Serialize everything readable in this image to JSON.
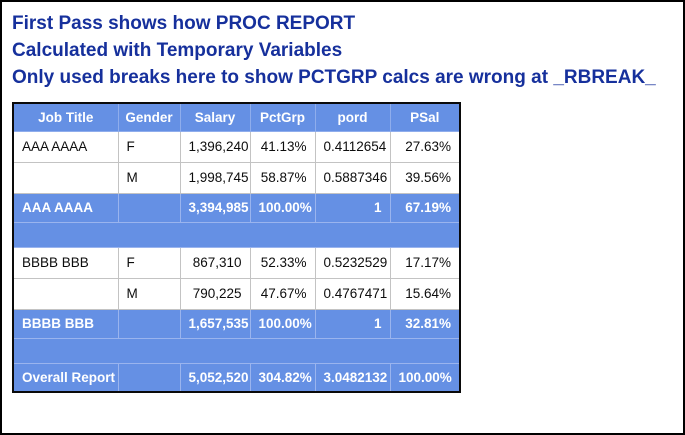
{
  "page": {
    "background": "#FFFFFF",
    "frame_border_color": "#000000"
  },
  "titles": {
    "color": "#16309C",
    "line1": "First Pass shows how PROC REPORT",
    "line2": "Calculated with Temporary Variables",
    "line3": "Only used breaks here to show PCTGRP calcs are wrong at _RBREAK_"
  },
  "table": {
    "colors": {
      "header_bg": "#6590E4",
      "header_text": "#FFFFFF",
      "summary_bg": "#6590E4",
      "summary_text": "#FFFFFF",
      "body_text": "#0D0D0D",
      "gridline": "#C3C3C3",
      "outer_border": "#0A0A0A"
    },
    "columns": [
      {
        "label": "Job Title",
        "align": "left"
      },
      {
        "label": "Gender",
        "align": "left"
      },
      {
        "label": "Salary",
        "align": "right"
      },
      {
        "label": "PctGrp",
        "align": "right"
      },
      {
        "label": "pord",
        "align": "right"
      },
      {
        "label": "PSal",
        "align": "right"
      }
    ],
    "rows": [
      {
        "type": "data",
        "cells": [
          "AAA AAAA",
          "F",
          "1,396,240",
          "41.13%",
          "0.4112654",
          "27.63%"
        ]
      },
      {
        "type": "data",
        "cells": [
          "",
          "M",
          "1,998,745",
          "58.87%",
          "0.5887346",
          "39.56%"
        ]
      },
      {
        "type": "summary",
        "cells": [
          "AAA AAAA",
          "",
          "3,394,985",
          "100.00%",
          "1",
          "67.19%"
        ]
      },
      {
        "type": "blank"
      },
      {
        "type": "data",
        "cells": [
          "BBBB BBB",
          "F",
          "867,310",
          "52.33%",
          "0.5232529",
          "17.17%"
        ]
      },
      {
        "type": "data",
        "cells": [
          "",
          "M",
          "790,225",
          "47.67%",
          "0.4767471",
          "15.64%"
        ]
      },
      {
        "type": "summary",
        "cells": [
          "BBBB BBB",
          "",
          "1,657,535",
          "100.00%",
          "1",
          "32.81%"
        ]
      },
      {
        "type": "blank"
      },
      {
        "type": "summary",
        "cells": [
          "Overall Report",
          "",
          "5,052,520",
          "304.82%",
          "3.0482132",
          "100.00%"
        ]
      }
    ]
  }
}
